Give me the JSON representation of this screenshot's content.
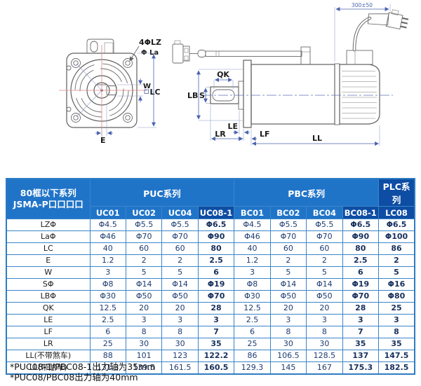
{
  "drawing": {
    "front": {
      "bolt_holes": "4ΦLZ",
      "bolt_circle": "Φ La",
      "key_width": "W",
      "frame_square_symbol": "□",
      "frame": "LC",
      "offset": "E"
    },
    "side": {
      "cable_length": "300±50",
      "key_len": "QK",
      "shaft_dia": "S",
      "pilot_dia": "LB",
      "le": "LE",
      "lr": "LR",
      "lf": "LF",
      "ll": "LL"
    }
  },
  "table": {
    "corner": {
      "line1": "80框以下系列",
      "line2": "JSMA-P口口口口"
    },
    "groups": [
      {
        "label": "PUC系列",
        "span": 4
      },
      {
        "label": "PBC系列",
        "span": 4
      },
      {
        "label": "PLC系列",
        "span": 1
      }
    ],
    "models": [
      "UC01",
      "UC02",
      "UC04",
      "UC08-1",
      "BC01",
      "BC02",
      "BC04",
      "BC08-1",
      "LC08"
    ],
    "highlight_columns": [
      3,
      7,
      8
    ],
    "rows": [
      {
        "label": "LZΦ",
        "values": [
          "Φ4.5",
          "Φ5.5",
          "Φ5.5",
          "Φ6.5",
          "Φ4.5",
          "Φ5.5",
          "Φ5.5",
          "Φ6.5",
          "Φ6.5"
        ]
      },
      {
        "label": "LaΦ",
        "values": [
          "Φ46",
          "Φ70",
          "Φ70",
          "Φ90",
          "Φ46",
          "Φ70",
          "Φ70",
          "Φ90",
          "Φ100"
        ]
      },
      {
        "label": "LC",
        "values": [
          "40",
          "60",
          "60",
          "80",
          "40",
          "60",
          "60",
          "80",
          "86"
        ]
      },
      {
        "label": "E",
        "values": [
          "1.2",
          "2",
          "2",
          "2.5",
          "1.2",
          "2",
          "2",
          "2.5",
          "2"
        ]
      },
      {
        "label": "W",
        "values": [
          "3",
          "5",
          "5",
          "6",
          "3",
          "5",
          "5",
          "6",
          "5"
        ]
      },
      {
        "label": "SΦ",
        "values": [
          "Φ8",
          "Φ14",
          "Φ14",
          "Φ19",
          "Φ8",
          "Φ14",
          "Φ14",
          "Φ19",
          "Φ16"
        ]
      },
      {
        "label": "LBΦ",
        "values": [
          "Φ30",
          "Φ50",
          "Φ50",
          "Φ70",
          "Φ30",
          "Φ50",
          "Φ50",
          "Φ70",
          "Φ80"
        ]
      },
      {
        "label": "QK",
        "values": [
          "12.5",
          "20",
          "20",
          "28",
          "12.5",
          "20",
          "20",
          "28",
          "25"
        ]
      },
      {
        "label": "LE",
        "values": [
          "2.5",
          "3",
          "3",
          "3",
          "2.5",
          "3",
          "3",
          "3",
          "3"
        ]
      },
      {
        "label": "LF",
        "values": [
          "6",
          "8",
          "8",
          "7",
          "6",
          "8",
          "8",
          "7",
          "8"
        ]
      },
      {
        "label": "LR",
        "values": [
          "25",
          "30",
          "30",
          "35",
          "25",
          "30",
          "30",
          "35",
          "35"
        ]
      },
      {
        "label": "LL(不带煞车)",
        "values": [
          "88",
          "101",
          "123",
          "122.2",
          "86",
          "106.5",
          "128.5",
          "137",
          "147.5"
        ]
      },
      {
        "label": "LL(带煞车)",
        "values": [
          "131.3",
          "139.5",
          "161.5",
          "160.5",
          "129.3",
          "145",
          "167",
          "175.3",
          "182.5"
        ]
      }
    ]
  },
  "footnotes": [
    "*PUC08-1/PBC08-1出力轴为35mm",
    "*PUC08/PBC08出力轴为40mm"
  ],
  "colors": {
    "header_blue": "#2074c8",
    "header_dark_blue": "#0e4da4",
    "table_border": "#2e7cc3",
    "value_text": "#1d3c72",
    "dimension_blue": "#4a63ad",
    "centerline_red": "#e08585",
    "outline_gray": "#5f5f5f"
  }
}
